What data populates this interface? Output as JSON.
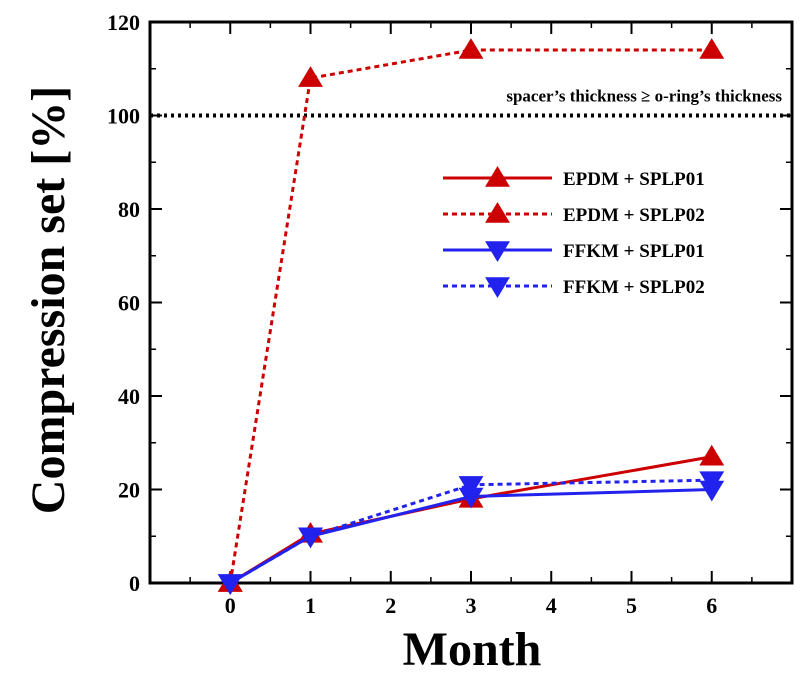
{
  "chart_data": {
    "type": "line",
    "title": "",
    "xlabel": "Month",
    "ylabel": "Compression set [%]",
    "xlim": [
      -1,
      7
    ],
    "ylim": [
      0,
      120
    ],
    "x_ticks": [
      0,
      1,
      2,
      3,
      4,
      5,
      6
    ],
    "y_ticks": [
      0,
      20,
      40,
      60,
      80,
      100,
      120
    ],
    "grid": false,
    "legend_position": "center-right",
    "reference_line": {
      "y": 100,
      "label": "spacer’s thickness ≥ o-ring’s thickness",
      "color": "#000000",
      "style": "dotted"
    },
    "series": [
      {
        "name": "EPDM + SPLP01",
        "x": [
          0,
          1,
          3,
          6
        ],
        "values": [
          0,
          10.5,
          18,
          27
        ],
        "color": "#cc0000",
        "line_style": "solid",
        "marker": "triangle-up"
      },
      {
        "name": "EPDM + SPLP02",
        "x": [
          0,
          1,
          3,
          6
        ],
        "values": [
          0,
          108,
          114,
          114
        ],
        "color": "#cc0000",
        "line_style": "dashed",
        "marker": "triangle-up"
      },
      {
        "name": "FFKM + SPLP01",
        "x": [
          0,
          1,
          3,
          6
        ],
        "values": [
          0,
          10,
          18.5,
          20
        ],
        "color": "#2222ee",
        "line_style": "solid",
        "marker": "triangle-down"
      },
      {
        "name": "FFKM + SPLP02",
        "x": [
          0,
          1,
          3,
          6
        ],
        "values": [
          0,
          10,
          21,
          22
        ],
        "color": "#2222ee",
        "line_style": "dashed",
        "marker": "triangle-down"
      }
    ]
  }
}
